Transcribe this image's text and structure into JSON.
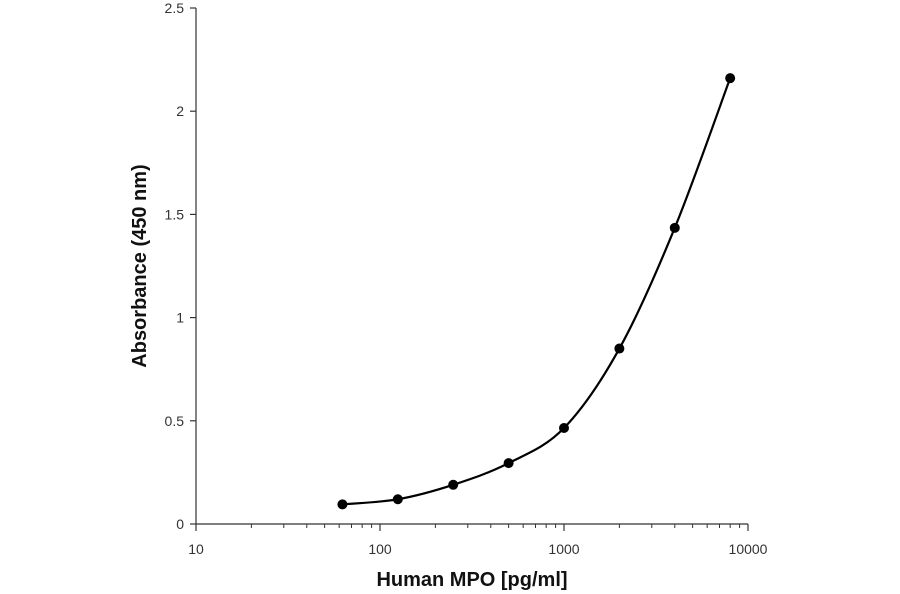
{
  "chart_data": {
    "type": "scatter",
    "xlabel": "Human MPO [pg/ml]",
    "ylabel": "Absorbance (450 nm)",
    "x_scale": "log",
    "xlim": [
      10,
      10000
    ],
    "ylim": [
      0,
      2.5
    ],
    "x_ticks": [
      10,
      100,
      1000,
      10000
    ],
    "x_tick_labels": [
      "10",
      "100",
      "1000",
      "10000"
    ],
    "y_ticks": [
      0,
      0.5,
      1,
      1.5,
      2,
      2.5
    ],
    "y_tick_labels": [
      "0",
      "0.5",
      "1",
      "1.5",
      "2",
      "2.5"
    ],
    "grid": false,
    "series": [
      {
        "x": [
          62.5,
          125,
          250,
          500,
          1000,
          2000,
          4000,
          8000
        ],
        "y": [
          0.095,
          0.12,
          0.19,
          0.295,
          0.465,
          0.85,
          1.435,
          2.16
        ],
        "color": "#000000",
        "line": "smooth"
      }
    ]
  }
}
